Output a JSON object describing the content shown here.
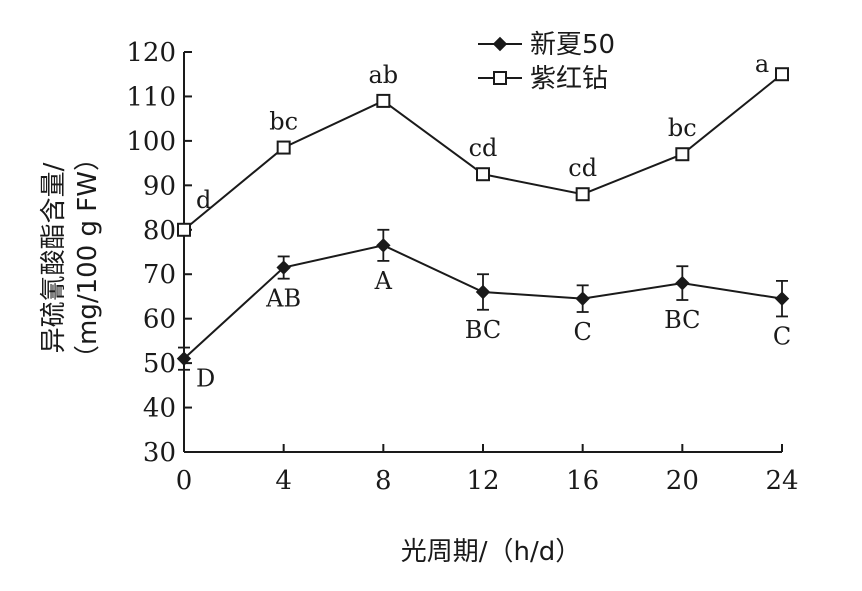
{
  "chart_data": {
    "type": "line",
    "xlabel": "光周期/（h/d）",
    "ylabel_line1": "异硫氰酸酯含量/",
    "ylabel_line2": "（mg/100 g FW）",
    "x": [
      0,
      4,
      8,
      12,
      16,
      20,
      24
    ],
    "xticks": [
      "0",
      "4",
      "8",
      "12",
      "16",
      "20",
      "24"
    ],
    "yticks": [
      "30",
      "40",
      "50",
      "60",
      "70",
      "80",
      "90",
      "100",
      "110",
      "120"
    ],
    "xlim": [
      0,
      24
    ],
    "ylim": [
      30,
      120
    ],
    "legend_position": "top-right",
    "grid": false,
    "series": [
      {
        "name": "新夏50",
        "marker": "filled-diamond",
        "color": "#1a1a1a",
        "values": [
          51,
          71.5,
          76.5,
          66,
          64.5,
          68,
          64.5
        ],
        "errors": [
          2.5,
          2.5,
          3.5,
          4,
          3,
          3.8,
          4
        ],
        "labels": [
          "D",
          "AB",
          "A",
          "BC",
          "C",
          "BC",
          "C"
        ]
      },
      {
        "name": "紫红钻",
        "marker": "open-square",
        "color": "#1a1a1a",
        "values": [
          80,
          98.5,
          109,
          92.5,
          88,
          97,
          115
        ],
        "errors": [
          0,
          0,
          0,
          0,
          0,
          0,
          0
        ],
        "labels": [
          "d",
          "bc",
          "ab",
          "cd",
          "cd",
          "bc",
          "a"
        ]
      }
    ]
  }
}
